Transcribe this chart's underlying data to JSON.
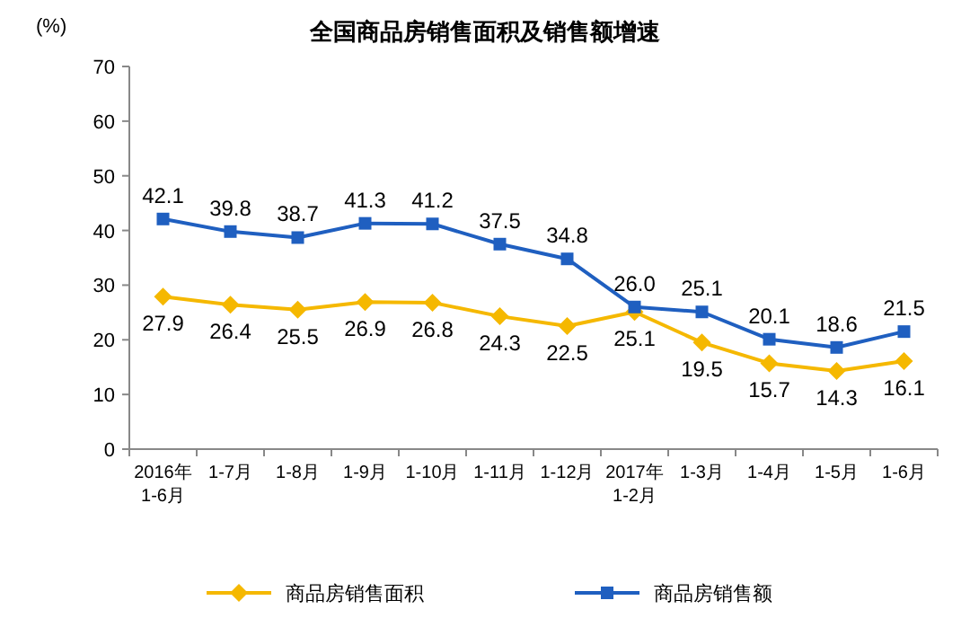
{
  "chart_data": {
    "type": "line",
    "title": "全国商品房销售面积及销售额增速",
    "ylabel": "(%)",
    "categories": [
      "2016年\n1-6月",
      "1-7月",
      "1-8月",
      "1-9月",
      "1-10月",
      "1-11月",
      "1-12月",
      "2017年\n1-2月",
      "1-3月",
      "1-4月",
      "1-5月",
      "1-6月"
    ],
    "series": [
      {
        "name": "商品房销售面积",
        "color": "#f5b800",
        "marker": "diamond",
        "values": [
          27.9,
          26.4,
          25.5,
          26.9,
          26.8,
          24.3,
          22.5,
          25.1,
          19.5,
          15.7,
          14.3,
          16.1
        ],
        "value_labels": [
          "27.9",
          "26.4",
          "25.5",
          "26.9",
          "26.8",
          "24.3",
          "22.5",
          "25.1",
          "19.5",
          "15.7",
          "14.3",
          "16.1"
        ]
      },
      {
        "name": "商品房销售额",
        "color": "#1f5fc0",
        "marker": "square",
        "values": [
          42.1,
          39.8,
          38.7,
          41.3,
          41.2,
          37.5,
          34.8,
          26.0,
          25.1,
          20.1,
          18.6,
          21.5
        ],
        "value_labels": [
          "42.1",
          "39.8",
          "38.7",
          "41.3",
          "41.2",
          "37.5",
          "34.8",
          "26.0",
          "25.1",
          "20.1",
          "18.6",
          "21.5"
        ]
      }
    ],
    "ylim": [
      0,
      70
    ],
    "yticks": [
      0,
      10,
      20,
      30,
      40,
      50,
      60,
      70
    ],
    "legend": "bottom",
    "grid": false,
    "line_style": "solid"
  }
}
